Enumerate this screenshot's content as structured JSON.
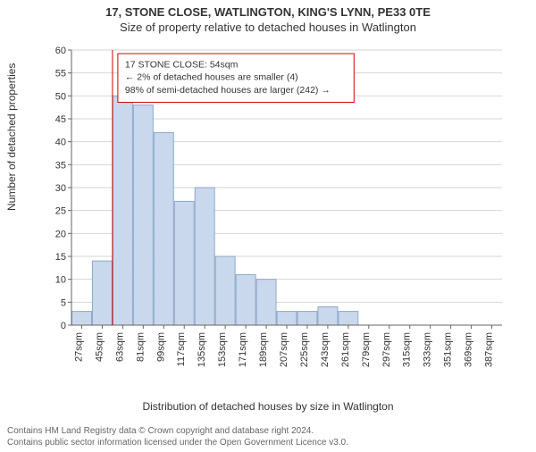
{
  "titles": {
    "line1": "17, STONE CLOSE, WATLINGTON, KING'S LYNN, PE33 0TE",
    "line2": "Size of property relative to detached houses in Watlington"
  },
  "chart": {
    "type": "histogram",
    "ylabel": "Number of detached properties",
    "xlabel": "Distribution of detached houses by size in Watlington",
    "ylim": [
      0,
      60
    ],
    "ytick_step": 5,
    "x_categories": [
      "27sqm",
      "45sqm",
      "63sqm",
      "81sqm",
      "99sqm",
      "117sqm",
      "135sqm",
      "153sqm",
      "171sqm",
      "189sqm",
      "207sqm",
      "225sqm",
      "243sqm",
      "261sqm",
      "279sqm",
      "297sqm",
      "315sqm",
      "333sqm",
      "351sqm",
      "369sqm",
      "387sqm"
    ],
    "values": [
      3,
      14,
      50,
      48,
      42,
      27,
      30,
      15,
      11,
      10,
      3,
      3,
      4,
      3,
      0,
      0,
      0,
      0,
      0,
      0,
      0
    ],
    "bar_fill": "#c9d8ec",
    "bar_stroke": "#8ea8c9",
    "background": "#ffffff",
    "grid_color": "#d6d6d6",
    "axis_color": "#666666",
    "tick_label_color": "#333333",
    "tick_fontsize": 11,
    "label_fontsize": 12,
    "title_fontsize": 13,
    "marker_line": {
      "x_category_index_after": 1,
      "color": "#d40000",
      "width": 1
    },
    "annotation": {
      "lines": [
        "17 STONE CLOSE: 54sqm",
        "← 2% of detached houses are smaller (4)",
        "98% of semi-detached houses are larger (242) →"
      ],
      "border_color": "#d40000",
      "bg_color": "#ffffff",
      "text_color": "#333333",
      "fontsize": 10.5
    }
  },
  "footer": {
    "line1": "Contains HM Land Registry data © Crown copyright and database right 2024.",
    "line2": "Contains public sector information licensed under the Open Government Licence v3.0."
  }
}
